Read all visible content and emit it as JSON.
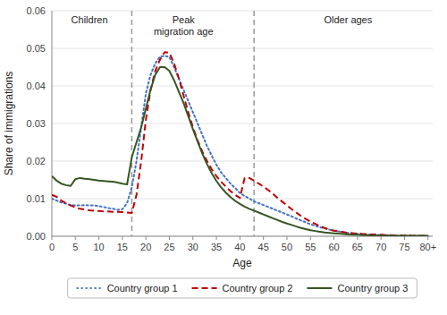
{
  "chart_data": {
    "type": "line",
    "xlabel": "Age",
    "ylabel": "Share of immigrations",
    "xlim": [
      0,
      81
    ],
    "ylim": [
      0,
      0.06
    ],
    "xticks": [
      0,
      5,
      10,
      15,
      20,
      25,
      30,
      35,
      40,
      45,
      50,
      55,
      60,
      65,
      70,
      75,
      {
        "value": 80,
        "label": "80+"
      }
    ],
    "yticks": [
      {
        "value": 0.0,
        "label": "0.00"
      },
      {
        "value": 0.01,
        "label": "0.01"
      },
      {
        "value": 0.02,
        "label": "0.02"
      },
      {
        "value": 0.03,
        "label": "0.03"
      },
      {
        "value": 0.04,
        "label": "0.04"
      },
      {
        "value": 0.05,
        "label": "0.05"
      },
      {
        "value": 0.06,
        "label": "0.06"
      }
    ],
    "grid": "y",
    "legend": "bottom",
    "vlines": [
      {
        "x": 17
      },
      {
        "x": 43
      }
    ],
    "annotations": [
      {
        "text": "Children",
        "x": 8,
        "y": 0.059
      },
      {
        "text": "Peak\nmigration age",
        "x": 28,
        "y": 0.059
      },
      {
        "text": "Older ages",
        "x": 63,
        "y": 0.059
      }
    ],
    "x": [
      0,
      1,
      2,
      3,
      4,
      5,
      6,
      7,
      8,
      9,
      10,
      11,
      12,
      13,
      14,
      15,
      16,
      17,
      18,
      19,
      20,
      21,
      22,
      23,
      24,
      25,
      26,
      27,
      28,
      29,
      30,
      31,
      32,
      33,
      34,
      35,
      36,
      37,
      38,
      39,
      40,
      41,
      42,
      43,
      44,
      45,
      46,
      47,
      48,
      49,
      50,
      51,
      52,
      53,
      54,
      55,
      56,
      57,
      58,
      59,
      60,
      61,
      62,
      63,
      64,
      65,
      66,
      67,
      68,
      69,
      70,
      71,
      72,
      73,
      74,
      75,
      76,
      77,
      78,
      79,
      80
    ],
    "series": [
      {
        "name": "Country group 1",
        "color": "#4472C4",
        "line_style": "dotted",
        "values": [
          0.01,
          0.0095,
          0.009,
          0.0087,
          0.0083,
          0.0082,
          0.0082,
          0.0083,
          0.0082,
          0.0082,
          0.008,
          0.0078,
          0.0075,
          0.0073,
          0.007,
          0.0072,
          0.0088,
          0.013,
          0.02,
          0.029,
          0.038,
          0.043,
          0.046,
          0.0478,
          0.048,
          0.0477,
          0.045,
          0.042,
          0.039,
          0.036,
          0.033,
          0.03,
          0.027,
          0.024,
          0.0215,
          0.019,
          0.017,
          0.0155,
          0.014,
          0.0128,
          0.0115,
          0.0107,
          0.01,
          0.0093,
          0.0088,
          0.0083,
          0.0078,
          0.0073,
          0.0068,
          0.0063,
          0.0058,
          0.0053,
          0.0047,
          0.0042,
          0.0037,
          0.0032,
          0.0028,
          0.0024,
          0.0021,
          0.0018,
          0.0015,
          0.0013,
          0.0011,
          0.0009,
          0.0008,
          0.0007,
          0.0006,
          0.0005,
          0.0004,
          0.0004,
          0.0003,
          0.0003,
          0.0002,
          0.0002,
          0.0002,
          0.0002,
          0.0002,
          0.0001,
          0.0001,
          0.0001,
          0.0001
        ]
      },
      {
        "name": "Country group 2",
        "color": "#C00000",
        "line_style": "dashed",
        "values": [
          0.011,
          0.0105,
          0.0095,
          0.0088,
          0.0082,
          0.0077,
          0.0073,
          0.0071,
          0.0069,
          0.0068,
          0.0067,
          0.0066,
          0.0066,
          0.0065,
          0.0065,
          0.0064,
          0.0063,
          0.0062,
          0.011,
          0.02,
          0.031,
          0.039,
          0.044,
          0.047,
          0.049,
          0.0488,
          0.046,
          0.042,
          0.0375,
          0.033,
          0.029,
          0.0255,
          0.0225,
          0.02,
          0.0178,
          0.016,
          0.0145,
          0.0132,
          0.012,
          0.011,
          0.0102,
          0.0155,
          0.0155,
          0.0148,
          0.014,
          0.0132,
          0.0123,
          0.0113,
          0.0102,
          0.0092,
          0.0082,
          0.0072,
          0.0063,
          0.0054,
          0.0046,
          0.0039,
          0.0033,
          0.0027,
          0.0022,
          0.0018,
          0.0015,
          0.0013,
          0.0011,
          0.0009,
          0.0008,
          0.0007,
          0.0006,
          0.0005,
          0.0005,
          0.0004,
          0.0004,
          0.0003,
          0.0003,
          0.0002,
          0.0002,
          0.0002,
          0.0002,
          0.0001,
          0.0001,
          0.0001,
          0.0001
        ]
      },
      {
        "name": "Country group 3",
        "color": "#375623",
        "line_style": "solid",
        "values": [
          0.016,
          0.0148,
          0.014,
          0.0136,
          0.0134,
          0.0152,
          0.0155,
          0.0153,
          0.0152,
          0.015,
          0.0148,
          0.0147,
          0.0146,
          0.0145,
          0.0143,
          0.014,
          0.0138,
          0.021,
          0.025,
          0.029,
          0.034,
          0.039,
          0.043,
          0.045,
          0.045,
          0.044,
          0.0415,
          0.0385,
          0.0355,
          0.032,
          0.0285,
          0.0252,
          0.022,
          0.0192,
          0.0168,
          0.0147,
          0.013,
          0.0116,
          0.0104,
          0.0094,
          0.0086,
          0.0079,
          0.0073,
          0.0068,
          0.0063,
          0.0058,
          0.0053,
          0.0048,
          0.0043,
          0.0038,
          0.0034,
          0.003,
          0.0026,
          0.0022,
          0.0019,
          0.0016,
          0.0014,
          0.0012,
          0.001,
          0.0009,
          0.0008,
          0.0007,
          0.0006,
          0.0005,
          0.0004,
          0.0004,
          0.0003,
          0.0003,
          0.0002,
          0.0002,
          0.0002,
          0.0002,
          0.0001,
          0.0001,
          0.0001,
          0.0001,
          0.0001,
          0.0001,
          0.0001,
          0.0001,
          0.0001
        ]
      }
    ]
  }
}
